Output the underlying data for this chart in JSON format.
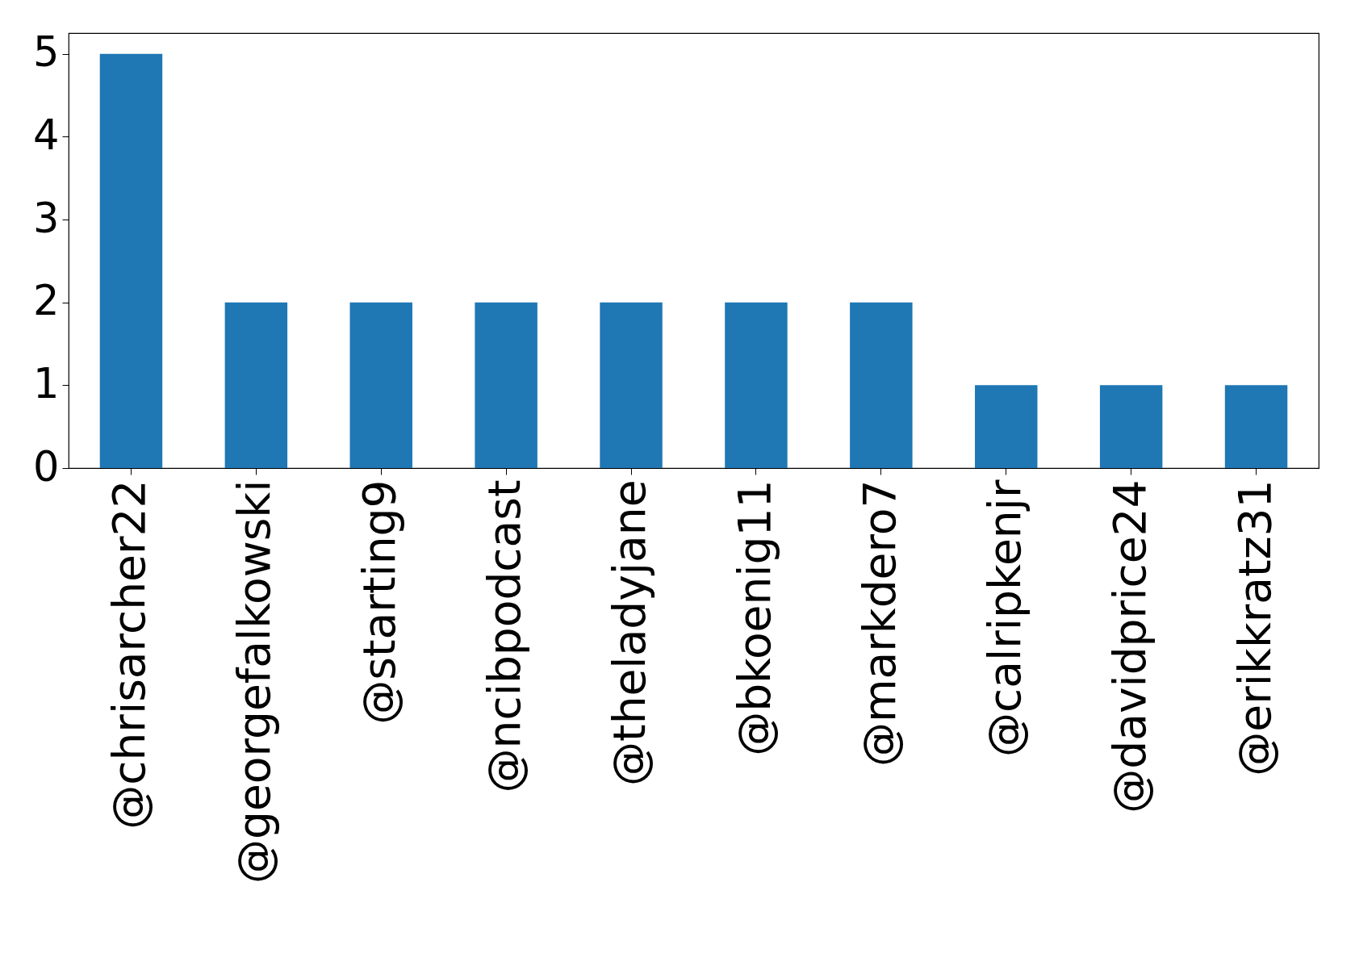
{
  "chart_data": {
    "type": "bar",
    "categories": [
      "@chrisarcher22",
      "@georgefalkowski",
      "@starting9",
      "@ncibpodcast",
      "@theladyjane",
      "@bkoenig11",
      "@markdero7",
      "@calripkenjr",
      "@davidprice24",
      "@erikkratz31"
    ],
    "values": [
      5,
      2,
      2,
      2,
      2,
      2,
      2,
      1,
      1,
      1
    ],
    "color": "#1f77b4",
    "ylim": [
      0,
      5.25
    ],
    "yticks": [
      0,
      1,
      2,
      3,
      4,
      5
    ],
    "grid": false
  }
}
